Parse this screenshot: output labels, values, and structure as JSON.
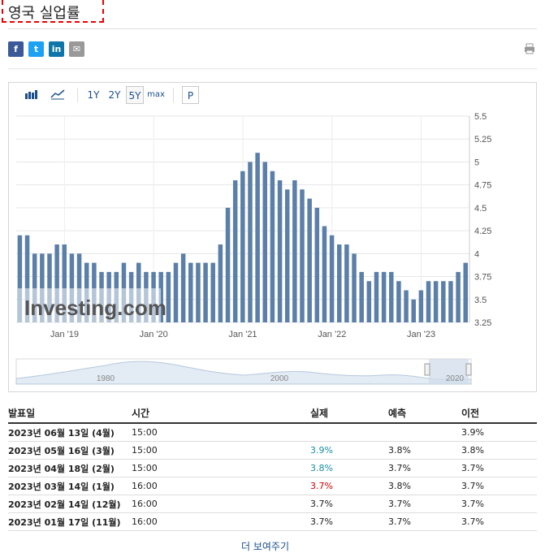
{
  "title": "영국 실업률",
  "share": [
    {
      "name": "facebook-icon",
      "glyph": "f",
      "color": "#3b5998"
    },
    {
      "name": "twitter-icon",
      "glyph": "t",
      "color": "#1da1f2"
    },
    {
      "name": "linkedin-icon",
      "glyph": "in",
      "color": "#0e76a8"
    },
    {
      "name": "email-icon",
      "glyph": "✉",
      "color": "#999999"
    }
  ],
  "toolbar": {
    "bar_icon": "bar-chart-icon",
    "line_icon": "line-chart-icon",
    "ranges": [
      "1Y",
      "2Y",
      "5Y",
      "max"
    ],
    "selected_range": "5Y",
    "p_label": "P"
  },
  "chart_data": {
    "type": "bar",
    "color": "#5b7fa8",
    "ylim": [
      3.25,
      5.5
    ],
    "y_ticks": [
      "5.5",
      "5.25",
      "5",
      "4.75",
      "4.5",
      "4.25",
      "4",
      "3.75",
      "3.5",
      "3.25"
    ],
    "x_ticks": [
      "Jan '19",
      "Jan '20",
      "Jan '21",
      "Jan '22",
      "Jan '23"
    ],
    "values": [
      4.2,
      4.2,
      4.0,
      4.0,
      4.0,
      4.1,
      4.1,
      4.0,
      4.0,
      3.9,
      3.9,
      3.8,
      3.8,
      3.8,
      3.9,
      3.8,
      3.9,
      3.8,
      3.8,
      3.8,
      3.8,
      3.9,
      4.0,
      3.9,
      3.9,
      3.9,
      3.9,
      4.1,
      4.5,
      4.8,
      4.9,
      5.0,
      5.1,
      5.0,
      4.9,
      4.8,
      4.7,
      4.8,
      4.7,
      4.6,
      4.5,
      4.3,
      4.2,
      4.1,
      4.1,
      4.0,
      3.8,
      3.7,
      3.8,
      3.8,
      3.8,
      3.7,
      3.6,
      3.5,
      3.6,
      3.7,
      3.7,
      3.7,
      3.7,
      3.8,
      3.9
    ],
    "navigator_labels": [
      "1980",
      "2000",
      "2020"
    ],
    "watermark": "Investing.com"
  },
  "table": {
    "headers": {
      "date": "발표일",
      "time": "시간",
      "actual": "실제",
      "forecast": "예측",
      "previous": "이전"
    },
    "rows": [
      {
        "date": "2023년 06월 13일 (4월)",
        "time": "15:00",
        "actual": "",
        "actual_trend": "",
        "forecast": "",
        "previous": "3.9%"
      },
      {
        "date": "2023년 05월 16일 (3월)",
        "time": "15:00",
        "actual": "3.9%",
        "actual_trend": "up",
        "forecast": "3.8%",
        "previous": "3.8%"
      },
      {
        "date": "2023년 04월 18일 (2월)",
        "time": "15:00",
        "actual": "3.8%",
        "actual_trend": "up",
        "forecast": "3.7%",
        "previous": "3.7%"
      },
      {
        "date": "2023년 03월 14일 (1월)",
        "time": "16:00",
        "actual": "3.7%",
        "actual_trend": "down",
        "forecast": "3.8%",
        "previous": "3.7%"
      },
      {
        "date": "2023년 02월 14일 (12월)",
        "time": "16:00",
        "actual": "3.7%",
        "actual_trend": "",
        "forecast": "3.7%",
        "previous": "3.7%"
      },
      {
        "date": "2023년 01월 17일 (11월)",
        "time": "16:00",
        "actual": "3.7%",
        "actual_trend": "",
        "forecast": "3.7%",
        "previous": "3.7%"
      }
    ],
    "more_label": "더 보여주기"
  }
}
